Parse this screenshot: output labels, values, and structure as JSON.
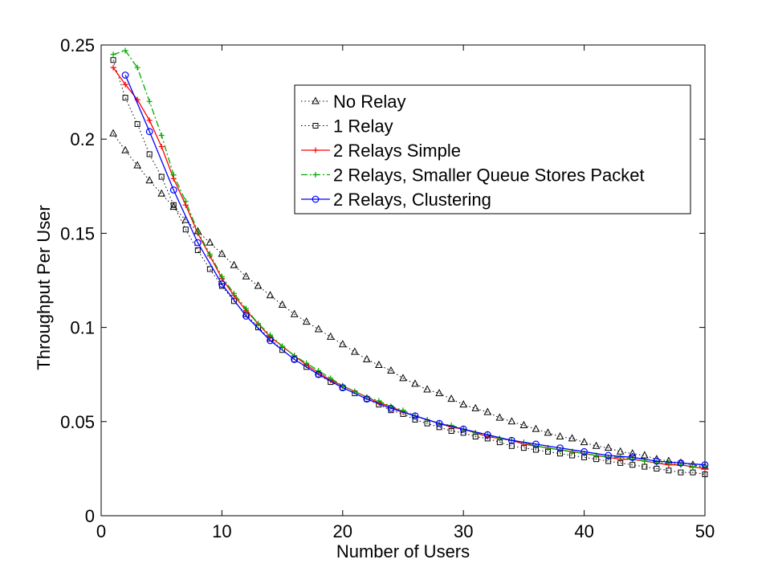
{
  "chart_data": {
    "type": "line",
    "title": "",
    "xlabel": "Number of Users",
    "ylabel": "Throughput Per User",
    "xlim": [
      0,
      50
    ],
    "ylim": [
      0,
      0.25
    ],
    "xticks": [
      "0",
      "10",
      "20",
      "30",
      "40",
      "50"
    ],
    "yticks": [
      "0",
      "0.05",
      "0.1",
      "0.15",
      "0.2",
      "0.25"
    ],
    "grid": false,
    "legend_position": "top-right",
    "x": [
      1,
      2,
      3,
      4,
      5,
      6,
      7,
      8,
      9,
      10,
      11,
      12,
      13,
      14,
      15,
      16,
      17,
      18,
      19,
      20,
      21,
      22,
      23,
      24,
      25,
      26,
      27,
      28,
      29,
      30,
      31,
      32,
      33,
      34,
      35,
      36,
      37,
      38,
      39,
      40,
      41,
      42,
      43,
      44,
      45,
      46,
      47,
      48,
      49,
      50
    ],
    "series": [
      {
        "name": "No Relay",
        "color": "#000000",
        "line": "dotted",
        "marker": "triangle",
        "values": [
          0.203,
          0.194,
          0.186,
          0.178,
          0.171,
          0.164,
          0.157,
          0.151,
          0.145,
          0.139,
          0.133,
          0.127,
          0.122,
          0.117,
          0.112,
          0.107,
          0.103,
          0.099,
          0.095,
          0.091,
          0.087,
          0.083,
          0.08,
          0.077,
          0.073,
          0.07,
          0.067,
          0.065,
          0.062,
          0.059,
          0.057,
          0.055,
          0.052,
          0.05,
          0.048,
          0.046,
          0.044,
          0.042,
          0.041,
          0.039,
          0.037,
          0.036,
          0.034,
          0.033,
          0.032,
          0.03,
          0.029,
          0.028,
          0.027,
          0.026
        ]
      },
      {
        "name": "1 Relay",
        "color": "#000000",
        "line": "dotted",
        "marker": "square",
        "values": [
          0.242,
          0.222,
          0.208,
          0.192,
          0.18,
          0.165,
          0.152,
          0.141,
          0.131,
          0.122,
          0.114,
          0.107,
          0.1,
          0.094,
          0.088,
          0.083,
          0.079,
          0.075,
          0.071,
          0.068,
          0.065,
          0.062,
          0.059,
          0.056,
          0.054,
          0.051,
          0.049,
          0.047,
          0.045,
          0.044,
          0.042,
          0.041,
          0.039,
          0.037,
          0.036,
          0.035,
          0.034,
          0.033,
          0.032,
          0.031,
          0.03,
          0.029,
          0.028,
          0.027,
          0.026,
          0.025,
          0.024,
          0.023,
          0.023,
          0.022
        ]
      },
      {
        "name": "2 Relays Simple",
        "color": "#ff0000",
        "line": "solid",
        "marker": "plus",
        "values": [
          0.238,
          0.229,
          0.221,
          0.21,
          0.196,
          0.179,
          0.165,
          0.15,
          0.138,
          0.126,
          0.117,
          0.109,
          0.102,
          0.095,
          0.09,
          0.085,
          0.08,
          0.076,
          0.072,
          0.069,
          0.066,
          0.063,
          0.06,
          0.058,
          0.055,
          0.053,
          0.051,
          0.049,
          0.047,
          0.046,
          0.044,
          0.042,
          0.041,
          0.04,
          0.038,
          0.037,
          0.036,
          0.035,
          0.034,
          0.033,
          0.032,
          0.031,
          0.03,
          0.03,
          0.029,
          0.028,
          0.027,
          0.027,
          0.026,
          0.025
        ]
      },
      {
        "name": "2 Relays, Smaller Queue Stores Packet",
        "color": "#00aa00",
        "line": "dashdot",
        "marker": "plus",
        "values": [
          0.245,
          0.247,
          0.238,
          0.22,
          0.202,
          0.181,
          0.167,
          0.151,
          0.139,
          0.127,
          0.118,
          0.11,
          0.102,
          0.096,
          0.09,
          0.085,
          0.081,
          0.077,
          0.073,
          0.069,
          0.066,
          0.063,
          0.061,
          0.058,
          0.056,
          0.053,
          0.051,
          0.049,
          0.048,
          0.046,
          0.044,
          0.043,
          0.041,
          0.04,
          0.039,
          0.037,
          0.036,
          0.035,
          0.034,
          0.033,
          0.032,
          0.031,
          0.031,
          0.03,
          0.029,
          0.028,
          0.028,
          0.027,
          0.026,
          0.026
        ]
      },
      {
        "name": "2 Relays, Clustering",
        "color": "#0000ff",
        "line": "solid",
        "marker": "circle",
        "values": [
          null,
          0.234,
          null,
          0.204,
          null,
          0.173,
          null,
          0.145,
          null,
          0.123,
          null,
          0.106,
          null,
          0.093,
          null,
          0.083,
          null,
          0.075,
          null,
          0.068,
          null,
          0.062,
          null,
          0.057,
          null,
          0.053,
          null,
          0.049,
          null,
          0.046,
          null,
          0.043,
          null,
          0.04,
          null,
          0.038,
          null,
          0.036,
          null,
          0.034,
          null,
          0.032,
          null,
          0.031,
          null,
          0.029,
          null,
          0.028,
          null,
          0.027
        ]
      }
    ]
  }
}
